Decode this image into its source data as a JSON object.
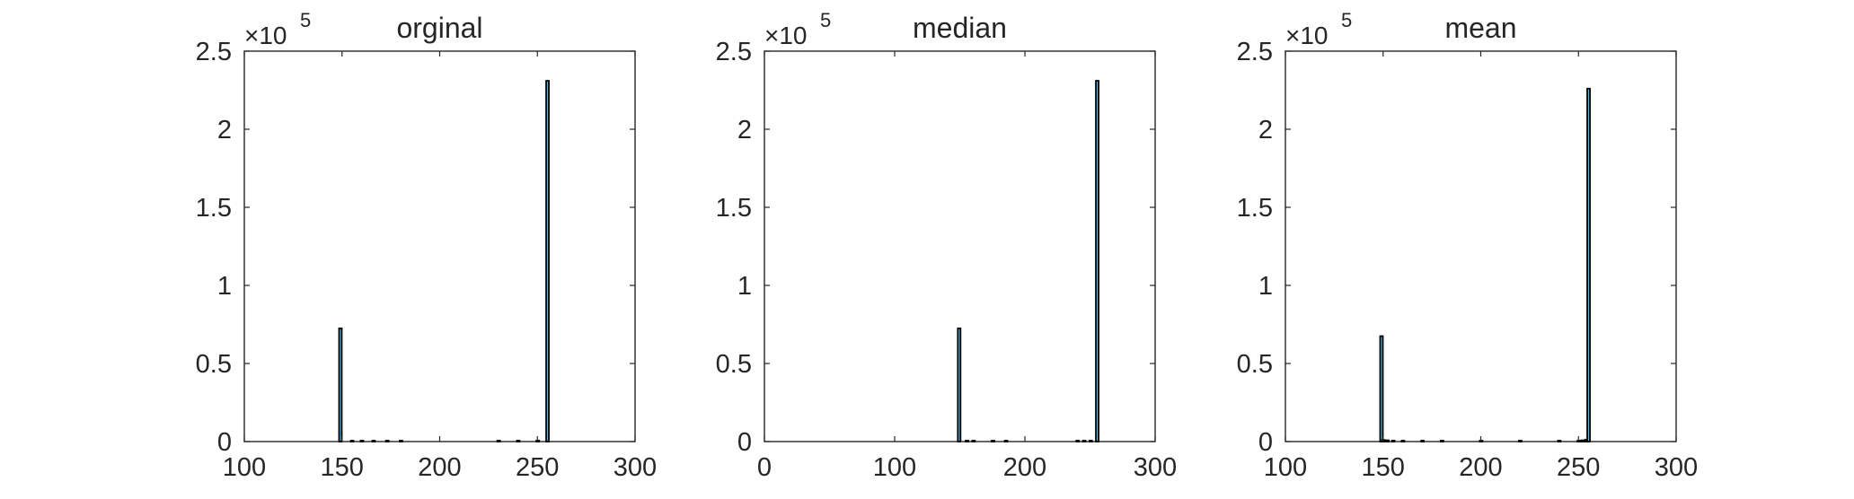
{
  "colors": {
    "bar_fill": "#4DBEEE",
    "bar_edge": "#000000",
    "axis": "#262626"
  },
  "chart_data": [
    {
      "type": "bar",
      "title": "orginal",
      "xlim": [
        100,
        300
      ],
      "ylim": [
        0,
        250000
      ],
      "grid": false,
      "x_ticks": [
        "100",
        "150",
        "200",
        "250",
        "300"
      ],
      "y_ticks": [
        "0",
        "0.5",
        "1",
        "1.5",
        "2",
        "2.5"
      ],
      "y_exponent": {
        "base": "×10",
        "power": "5"
      },
      "series": [
        {
          "x": [
            149,
            155,
            160,
            166,
            173,
            180,
            230,
            240,
            250,
            255
          ],
          "values": [
            72500,
            300,
            500,
            300,
            400,
            300,
            300,
            400,
            600,
            231000
          ]
        }
      ]
    },
    {
      "type": "bar",
      "title": "median",
      "xlim": [
        0,
        300
      ],
      "ylim": [
        0,
        250000
      ],
      "grid": false,
      "x_ticks": [
        "0",
        "100",
        "200",
        "300"
      ],
      "y_ticks": [
        "0",
        "0.5",
        "1",
        "1.5",
        "2",
        "2.5"
      ],
      "y_exponent": {
        "base": "×10",
        "power": "5"
      },
      "series": [
        {
          "x": [
            149,
            155,
            160,
            175,
            185,
            240,
            245,
            250,
            255
          ],
          "values": [
            72500,
            300,
            400,
            300,
            300,
            300,
            300,
            500,
            231000
          ]
        }
      ]
    },
    {
      "type": "bar",
      "title": "mean",
      "xlim": [
        100,
        300
      ],
      "ylim": [
        0,
        250000
      ],
      "grid": false,
      "x_ticks": [
        "100",
        "150",
        "200",
        "250",
        "300"
      ],
      "y_ticks": [
        "0",
        "0.5",
        "1",
        "1.5",
        "2",
        "2.5"
      ],
      "y_exponent": {
        "base": "×10",
        "power": "5"
      },
      "series": [
        {
          "x": [
            149,
            150,
            152,
            155,
            160,
            170,
            180,
            200,
            220,
            240,
            250,
            252,
            254,
            255
          ],
          "values": [
            67500,
            1000,
            800,
            600,
            500,
            400,
            350,
            300,
            300,
            350,
            500,
            800,
            1200,
            226000
          ]
        }
      ]
    }
  ]
}
